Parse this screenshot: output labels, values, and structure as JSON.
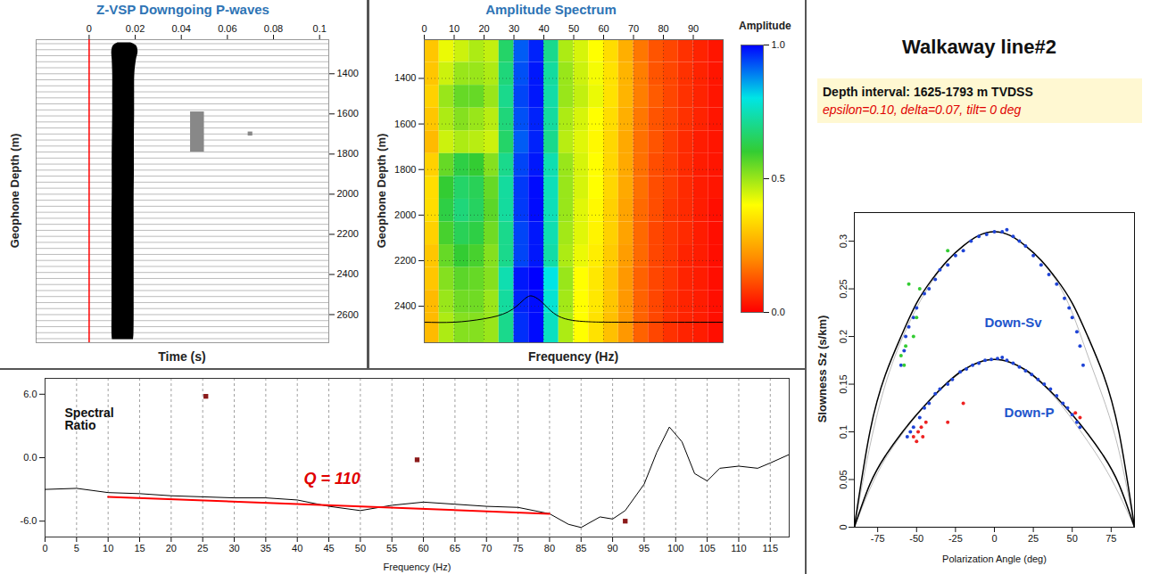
{
  "chart_data": [
    {
      "type": "wiggle",
      "title": "Z-VSP Downgoing P-waves",
      "xlabel": "Time (s)",
      "ylabel": "Geophone Depth (m)",
      "xlim": [
        -0.023,
        0.104
      ],
      "xticks": [
        0,
        0.02,
        0.04,
        0.06,
        0.08,
        0.1
      ],
      "ylim": [
        1230,
        2740
      ],
      "yticks": [
        1400,
        1600,
        1800,
        2000,
        2200,
        2400,
        2600
      ],
      "series": [
        {
          "type": "baseline",
          "color": "#777777",
          "y": [
            1250,
            1280,
            1310,
            1340,
            1370,
            1400,
            1430,
            1460,
            1490,
            1520,
            1550,
            1580,
            1610,
            1640,
            1670,
            1700,
            1730,
            1760,
            1790,
            1820,
            1850,
            1880,
            1910,
            1940,
            1970,
            2000,
            2030,
            2060,
            2090,
            2120,
            2150,
            2180,
            2210,
            2240,
            2270,
            2300,
            2330,
            2360,
            2390,
            2420,
            2450,
            2480,
            2510,
            2540,
            2570,
            2600,
            2630,
            2660,
            2690,
            2720
          ]
        },
        {
          "type": "area",
          "color": "#000000",
          "y": [
            1245,
            1260,
            1290,
            1330,
            1400,
            1500,
            1600,
            1700,
            1800,
            1900,
            2000,
            2100,
            2200,
            2300,
            2400,
            2500,
            2600,
            2700,
            2725
          ],
          "x1": [
            0.0125,
            0.0105,
            0.0098,
            0.01,
            0.0102,
            0.0102,
            0.0102,
            0.0101,
            0.01,
            0.01,
            0.01,
            0.0099,
            0.0099,
            0.0099,
            0.0099,
            0.0099,
            0.0099,
            0.0099,
            0.0101
          ],
          "x2": [
            0.018,
            0.0205,
            0.0212,
            0.0205,
            0.0198,
            0.0197,
            0.0197,
            0.0196,
            0.0196,
            0.0196,
            0.0195,
            0.0195,
            0.0195,
            0.0195,
            0.0195,
            0.0195,
            0.0195,
            0.0194,
            0.0192
          ]
        },
        {
          "type": "rect",
          "color": "#888888",
          "x1": [
            0.044,
            0.069
          ],
          "x2": [
            0.05,
            0.071
          ],
          "y1": [
            1590,
            1690
          ],
          "y2": [
            1790,
            1710
          ]
        },
        {
          "type": "rule",
          "color": "#ff0000",
          "x": [
            0
          ]
        }
      ]
    },
    {
      "type": "heatmap",
      "title": "Amplitude Spectrum",
      "xlabel": "Frequency (Hz)",
      "ylabel": "Geophone Depth (m)",
      "xlim": [
        0,
        100
      ],
      "xticks": [
        0,
        10,
        20,
        30,
        40,
        50,
        60,
        70,
        80,
        90
      ],
      "ylim": [
        1230,
        2560
      ],
      "yticks": [
        1400,
        1600,
        1800,
        2000,
        2200,
        2400
      ],
      "grid": true,
      "frequency_bins": [
        0,
        5,
        10,
        15,
        20,
        25,
        30,
        35,
        40,
        45,
        50,
        55,
        60,
        65,
        70,
        75,
        80,
        85,
        90,
        95,
        100
      ],
      "depth_bins": [
        1230,
        1330,
        1430,
        1530,
        1630,
        1730,
        1830,
        1930,
        2030,
        2130,
        2230,
        2330,
        2430,
        2560
      ],
      "cells": [
        [
          0.3,
          0.42,
          0.45,
          0.48,
          0.46,
          0.66,
          0.92,
          0.97,
          0.7,
          0.48,
          0.44,
          0.4,
          0.34,
          0.26,
          0.17,
          0.12,
          0.1,
          0.07,
          0.05,
          0.03
        ],
        [
          0.3,
          0.45,
          0.5,
          0.5,
          0.48,
          0.68,
          0.93,
          0.98,
          0.72,
          0.5,
          0.45,
          0.41,
          0.35,
          0.27,
          0.18,
          0.12,
          0.1,
          0.07,
          0.05,
          0.03
        ],
        [
          0.32,
          0.5,
          0.55,
          0.55,
          0.5,
          0.7,
          0.94,
          0.98,
          0.73,
          0.5,
          0.46,
          0.42,
          0.35,
          0.27,
          0.18,
          0.13,
          0.1,
          0.07,
          0.05,
          0.03
        ],
        [
          0.3,
          0.48,
          0.52,
          0.5,
          0.47,
          0.68,
          0.93,
          0.97,
          0.72,
          0.48,
          0.44,
          0.4,
          0.34,
          0.26,
          0.17,
          0.12,
          0.1,
          0.07,
          0.05,
          0.03
        ],
        [
          0.28,
          0.45,
          0.48,
          0.47,
          0.45,
          0.66,
          0.92,
          0.97,
          0.7,
          0.47,
          0.43,
          0.39,
          0.33,
          0.25,
          0.16,
          0.12,
          0.09,
          0.06,
          0.04,
          0.03
        ],
        [
          0.32,
          0.55,
          0.62,
          0.6,
          0.52,
          0.7,
          0.94,
          0.98,
          0.74,
          0.5,
          0.44,
          0.4,
          0.33,
          0.25,
          0.16,
          0.11,
          0.09,
          0.06,
          0.04,
          0.03
        ],
        [
          0.34,
          0.6,
          0.66,
          0.64,
          0.55,
          0.72,
          0.95,
          0.99,
          0.75,
          0.5,
          0.44,
          0.4,
          0.33,
          0.25,
          0.16,
          0.11,
          0.09,
          0.06,
          0.04,
          0.03
        ],
        [
          0.34,
          0.62,
          0.68,
          0.65,
          0.56,
          0.72,
          0.95,
          0.99,
          0.75,
          0.5,
          0.43,
          0.39,
          0.32,
          0.24,
          0.15,
          0.11,
          0.08,
          0.06,
          0.04,
          0.02
        ],
        [
          0.32,
          0.58,
          0.64,
          0.62,
          0.54,
          0.7,
          0.94,
          0.98,
          0.74,
          0.49,
          0.43,
          0.38,
          0.32,
          0.24,
          0.15,
          0.1,
          0.08,
          0.06,
          0.04,
          0.02
        ],
        [
          0.3,
          0.55,
          0.6,
          0.58,
          0.52,
          0.7,
          0.94,
          0.98,
          0.73,
          0.48,
          0.42,
          0.37,
          0.31,
          0.23,
          0.15,
          0.1,
          0.08,
          0.05,
          0.04,
          0.02
        ],
        [
          0.3,
          0.52,
          0.56,
          0.55,
          0.52,
          0.74,
          0.98,
          1.0,
          0.8,
          0.5,
          0.4,
          0.36,
          0.3,
          0.22,
          0.14,
          0.1,
          0.08,
          0.05,
          0.04,
          0.02
        ],
        [
          0.28,
          0.5,
          0.54,
          0.54,
          0.5,
          0.72,
          0.97,
          0.99,
          0.78,
          0.49,
          0.4,
          0.36,
          0.3,
          0.22,
          0.14,
          0.1,
          0.07,
          0.05,
          0.04,
          0.02
        ],
        [
          0.28,
          0.48,
          0.52,
          0.52,
          0.5,
          0.7,
          0.96,
          0.99,
          0.76,
          0.48,
          0.4,
          0.35,
          0.29,
          0.22,
          0.14,
          0.1,
          0.07,
          0.05,
          0.04,
          0.02
        ]
      ],
      "colorbar": {
        "label": "Amplitude",
        "range": [
          0,
          1
        ],
        "ticks": [
          {
            "value": 0,
            "label": "0.0"
          },
          {
            "value": 0.5,
            "label": "0.5"
          },
          {
            "value": 1,
            "label": "1.0"
          }
        ],
        "colors": [
          "#ff0000",
          "#ff8c00",
          "#ffff00",
          "#33cc33",
          "#00e5e5",
          "#0000ff"
        ]
      },
      "series": [
        {
          "type": "line",
          "color": "#000000",
          "x": [
            0,
            10,
            20,
            28,
            33,
            36,
            40,
            46,
            55,
            65,
            100
          ],
          "values": [
            2470,
            2470,
            2455,
            2425,
            2375,
            2355,
            2390,
            2450,
            2468,
            2470,
            2470
          ]
        }
      ]
    },
    {
      "type": "line",
      "title": "Spectral Ratio",
      "xlabel": "Frequency (Hz)",
      "xlim": [
        0,
        118
      ],
      "xticks": [
        0,
        5,
        10,
        15,
        20,
        25,
        30,
        35,
        40,
        45,
        50,
        55,
        60,
        65,
        70,
        75,
        80,
        85,
        90,
        95,
        100,
        105,
        110,
        115
      ],
      "ylim": [
        -7.5,
        7.5
      ],
      "yticks": [
        {
          "value": -6,
          "label": "-6.0"
        },
        {
          "value": 0,
          "label": "0.0"
        },
        {
          "value": 6,
          "label": "6.0"
        }
      ],
      "grid": true,
      "annotations": [
        "Q = 110"
      ],
      "series": [
        {
          "type": "line",
          "color": "#000000",
          "x": [
            0,
            5,
            10,
            15,
            20,
            25,
            30,
            35,
            40,
            45,
            50,
            55,
            60,
            65,
            70,
            75,
            80,
            83,
            85,
            88,
            90,
            92,
            95,
            97,
            99,
            101,
            103,
            105,
            107,
            110,
            113,
            115,
            118
          ],
          "values": [
            -3.0,
            -2.9,
            -3.3,
            -3.4,
            -3.6,
            -3.7,
            -3.8,
            -3.8,
            -4.0,
            -4.6,
            -5.0,
            -4.5,
            -4.2,
            -4.4,
            -4.6,
            -4.7,
            -5.3,
            -6.3,
            -6.6,
            -5.6,
            -5.8,
            -5.0,
            -2.5,
            0.5,
            2.9,
            1.5,
            -1.5,
            -2.2,
            -1.0,
            -0.8,
            -1.0,
            -0.5,
            0.3
          ]
        },
        {
          "type": "line",
          "color": "#ff0000",
          "x": [
            10,
            80
          ],
          "values": [
            -3.7,
            -5.3
          ]
        },
        {
          "type": "scatter",
          "marker": "square",
          "color": "#8b1a1a",
          "x": [
            25.5,
            59,
            92
          ],
          "values": [
            5.8,
            -0.2,
            -6.0
          ]
        }
      ]
    },
    {
      "type": "scatter",
      "title": "Walkaway line#2",
      "subtitle": "Depth interval: 1625-1793 m TVDSS",
      "annotations": [
        "epsilon=0.10,  delta=0.07, tilt= 0 deg"
      ],
      "xlabel": "Polarization Angle (deg)",
      "ylabel": "Slowness Sz (s/km)",
      "xlim": [
        -90,
        90
      ],
      "xticks": [
        -75,
        -50,
        -25,
        0,
        25,
        50,
        75
      ],
      "ylim": [
        0,
        0.33
      ],
      "yticks": [
        0,
        0.05,
        0.1,
        0.15,
        0.2,
        0.25,
        0.3
      ],
      "series": [
        {
          "type": "line",
          "color": "#bbbbbb",
          "x": [
            -90,
            -80,
            -70,
            -60,
            -50,
            -40,
            -30,
            -20,
            -10,
            0,
            10,
            20,
            30,
            40,
            50,
            60,
            70,
            80,
            90
          ],
          "values": [
            0,
            0.085,
            0.15,
            0.195,
            0.23,
            0.258,
            0.279,
            0.295,
            0.306,
            0.31,
            0.306,
            0.295,
            0.279,
            0.258,
            0.225,
            0.18,
            0.135,
            0.08,
            0
          ]
        },
        {
          "type": "line",
          "color": "#bbbbbb",
          "x": [
            -90,
            -80,
            -70,
            -60,
            -50,
            -40,
            -30,
            -20,
            -10,
            0,
            10,
            20,
            30,
            40,
            50,
            60,
            70,
            80,
            90
          ],
          "values": [
            0,
            0.04,
            0.072,
            0.096,
            0.117,
            0.135,
            0.151,
            0.164,
            0.173,
            0.176,
            0.173,
            0.164,
            0.151,
            0.134,
            0.113,
            0.09,
            0.065,
            0.035,
            0
          ]
        },
        {
          "name": "Down-Sv",
          "type": "line",
          "color": "#000000",
          "x": [
            -90,
            -80,
            -70,
            -60,
            -50,
            -40,
            -30,
            -20,
            -10,
            0,
            10,
            20,
            30,
            40,
            50,
            60,
            70,
            80,
            90
          ],
          "values": [
            0,
            0.1,
            0.16,
            0.2,
            0.235,
            0.26,
            0.28,
            0.295,
            0.306,
            0.31,
            0.306,
            0.295,
            0.28,
            0.26,
            0.235,
            0.2,
            0.16,
            0.1,
            0
          ]
        },
        {
          "name": "Down-P",
          "type": "line",
          "color": "#000000",
          "x": [
            -90,
            -80,
            -70,
            -60,
            -50,
            -40,
            -30,
            -20,
            -10,
            0,
            10,
            20,
            30,
            40,
            50,
            60,
            70,
            80,
            90
          ],
          "values": [
            0,
            0.045,
            0.075,
            0.098,
            0.118,
            0.136,
            0.152,
            0.165,
            0.173,
            0.176,
            0.173,
            0.165,
            0.152,
            0.136,
            0.118,
            0.098,
            0.075,
            0.045,
            0
          ]
        },
        {
          "type": "scatter",
          "color": "#1f44d6",
          "x": [
            -56,
            -54,
            -52,
            -48,
            -45,
            -42,
            -38,
            -35,
            -30,
            -27,
            -22,
            -18,
            -14,
            -10,
            -6,
            -2,
            2,
            5,
            8,
            12,
            16,
            20,
            24,
            28,
            32,
            36,
            40,
            44,
            47,
            50,
            53,
            55,
            -60,
            -58,
            -57,
            -55,
            -52,
            -50,
            -45,
            -42,
            -38,
            -35,
            -30,
            -25,
            -20,
            -15,
            -10,
            -5,
            0,
            5,
            8,
            12,
            16,
            20,
            25,
            30,
            35,
            40,
            45,
            48,
            50,
            53,
            55,
            57
          ],
          "values": [
            0.095,
            0.1,
            0.105,
            0.115,
            0.125,
            0.13,
            0.14,
            0.145,
            0.15,
            0.155,
            0.163,
            0.166,
            0.17,
            0.172,
            0.175,
            0.176,
            0.177,
            0.178,
            0.175,
            0.172,
            0.168,
            0.164,
            0.16,
            0.155,
            0.15,
            0.145,
            0.138,
            0.13,
            0.125,
            0.118,
            0.11,
            0.105,
            0.17,
            0.185,
            0.2,
            0.21,
            0.22,
            0.23,
            0.245,
            0.25,
            0.26,
            0.27,
            0.275,
            0.285,
            0.29,
            0.3,
            0.305,
            0.307,
            0.31,
            0.31,
            0.312,
            0.305,
            0.3,
            0.295,
            0.285,
            0.275,
            0.265,
            0.255,
            0.24,
            0.23,
            0.22,
            0.205,
            0.19,
            0.17
          ]
        },
        {
          "type": "scatter",
          "color": "#33cc33",
          "x": [
            -60,
            -58,
            -57,
            -55,
            -52,
            -50,
            -48,
            -30
          ],
          "values": [
            0.18,
            0.17,
            0.19,
            0.255,
            0.2,
            0.22,
            0.25,
            0.29
          ]
        },
        {
          "type": "scatter",
          "color": "#ee2222",
          "x": [
            -52,
            -50,
            -49,
            -47,
            -46,
            -44,
            -30,
            -20,
            52,
            55
          ],
          "values": [
            0.095,
            0.09,
            0.1,
            0.105,
            0.095,
            0.11,
            0.11,
            0.13,
            0.12,
            0.115
          ]
        }
      ]
    }
  ]
}
